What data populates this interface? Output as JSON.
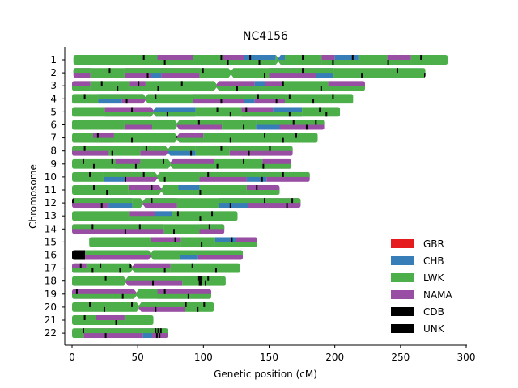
{
  "chart_data": {
    "type": "karyogram",
    "title": "NC4156",
    "xlabel": "Genetic position (cM)",
    "ylabel": "Chromosome",
    "xlim": [
      0,
      300
    ],
    "xticks": [
      0,
      50,
      100,
      150,
      200,
      250,
      300
    ],
    "grid": false,
    "legend_position": "lower right",
    "legend": [
      {
        "label": "GBR",
        "color": "#e41a1c"
      },
      {
        "label": "CHB",
        "color": "#377eb8"
      },
      {
        "label": "LWK",
        "color": "#4daf4a"
      },
      {
        "label": "NAMA",
        "color": "#984ea3"
      },
      {
        "label": "CDB",
        "color": "#000000"
      },
      {
        "label": "UNK",
        "color": "#000000"
      }
    ],
    "chromosomes": [
      {
        "label": "1",
        "start": 1,
        "end": 286,
        "centromere": 157
      },
      {
        "label": "2",
        "start": 1,
        "end": 269,
        "centromere": 121
      },
      {
        "label": "3",
        "start": 0,
        "end": 223,
        "centromere": 110
      },
      {
        "label": "4",
        "start": 0,
        "end": 214,
        "centromere": 56
      },
      {
        "label": "5",
        "start": 0,
        "end": 204,
        "centromere": 62
      },
      {
        "label": "6",
        "start": 0,
        "end": 192,
        "centromere": 80
      },
      {
        "label": "7",
        "start": 0,
        "end": 187,
        "centromere": 80
      },
      {
        "label": "8",
        "start": 0,
        "end": 168,
        "centromere": 73
      },
      {
        "label": "9",
        "start": 0,
        "end": 167,
        "centromere": 75
      },
      {
        "label": "10",
        "start": 0,
        "end": 181,
        "centromere": 65
      },
      {
        "label": "11",
        "start": 0,
        "end": 158,
        "centromere": 68
      },
      {
        "label": "12",
        "start": 0,
        "end": 174,
        "centromere": 54
      },
      {
        "label": "13",
        "start": 0,
        "end": 126,
        "centromere": 0
      },
      {
        "label": "14",
        "start": 0,
        "end": 116,
        "centromere": 0
      },
      {
        "label": "15",
        "start": 13,
        "end": 141,
        "centromere": 13
      },
      {
        "label": "16",
        "start": 0,
        "end": 130,
        "centromere": 60
      },
      {
        "label": "17",
        "start": 0,
        "end": 128,
        "centromere": 46
      },
      {
        "label": "18",
        "start": 0,
        "end": 117,
        "centromere": 41
      },
      {
        "label": "19",
        "start": 0,
        "end": 106,
        "centromere": 49
      },
      {
        "label": "20",
        "start": 0,
        "end": 108,
        "centromere": 51
      },
      {
        "label": "21",
        "start": 0,
        "end": 62,
        "centromere": 0
      },
      {
        "label": "22",
        "start": 0,
        "end": 73,
        "centromere": 0
      }
    ],
    "tracts": [
      [
        [
          "LWK",
          1,
          65
        ],
        [
          "NAMA",
          65,
          92
        ],
        [
          "LWK",
          92,
          115
        ],
        [
          "NAMA",
          115,
          131
        ],
        [
          "CHB",
          131,
          155
        ],
        [
          "LWK",
          155,
          157
        ],
        [
          "CHB",
          157,
          162
        ],
        [
          "LWK",
          162,
          190
        ],
        [
          "NAMA",
          190,
          200
        ],
        [
          "CHB",
          200,
          218
        ],
        [
          "LWK",
          218,
          240
        ],
        [
          "NAMA",
          240,
          258
        ],
        [
          "LWK",
          258,
          286
        ]
      ],
      [
        [
          "NAMA",
          1,
          14
        ],
        [
          "LWK",
          14,
          40
        ],
        [
          "NAMA",
          40,
          60
        ],
        [
          "CHB",
          60,
          68
        ],
        [
          "NAMA",
          68,
          97
        ],
        [
          "LWK",
          97,
          121
        ],
        [
          "LWK",
          121,
          150
        ],
        [
          "NAMA",
          150,
          186
        ],
        [
          "CHB",
          186,
          199
        ],
        [
          "LWK",
          199,
          269
        ]
      ],
      [
        [
          "NAMA",
          0,
          14
        ],
        [
          "LWK",
          14,
          44
        ],
        [
          "NAMA",
          44,
          56
        ],
        [
          "LWK",
          56,
          110
        ],
        [
          "NAMA",
          110,
          139
        ],
        [
          "CHB",
          139,
          147
        ],
        [
          "NAMA",
          147,
          160
        ],
        [
          "LWK",
          160,
          195
        ],
        [
          "NAMA",
          195,
          223
        ]
      ],
      [
        [
          "LWK",
          0,
          20
        ],
        [
          "CHB",
          20,
          38
        ],
        [
          "NAMA",
          38,
          56
        ],
        [
          "LWK",
          56,
          92
        ],
        [
          "NAMA",
          92,
          131
        ],
        [
          "CHB",
          131,
          139
        ],
        [
          "NAMA",
          139,
          162
        ],
        [
          "LWK",
          162,
          214
        ]
      ],
      [
        [
          "LWK",
          0,
          25
        ],
        [
          "NAMA",
          25,
          62
        ],
        [
          "CHB",
          62,
          94
        ],
        [
          "LWK",
          94,
          129
        ],
        [
          "NAMA",
          129,
          153
        ],
        [
          "CHB",
          153,
          175
        ],
        [
          "LWK",
          175,
          204
        ]
      ],
      [
        [
          "LWK",
          0,
          40
        ],
        [
          "NAMA",
          40,
          61
        ],
        [
          "LWK",
          61,
          80
        ],
        [
          "NAMA",
          80,
          114
        ],
        [
          "LWK",
          114,
          140
        ],
        [
          "CHB",
          140,
          158
        ],
        [
          "NAMA",
          158,
          192
        ]
      ],
      [
        [
          "LWK",
          0,
          16
        ],
        [
          "NAMA",
          16,
          32
        ],
        [
          "LWK",
          32,
          80
        ],
        [
          "NAMA",
          80,
          100
        ],
        [
          "LWK",
          100,
          187
        ]
      ],
      [
        [
          "NAMA",
          0,
          28
        ],
        [
          "LWK",
          28,
          52
        ],
        [
          "NAMA",
          52,
          73
        ],
        [
          "CHB",
          73,
          94
        ],
        [
          "LWK",
          94,
          120
        ],
        [
          "NAMA",
          120,
          168
        ]
      ],
      [
        [
          "LWK",
          0,
          33
        ],
        [
          "NAMA",
          33,
          52
        ],
        [
          "LWK",
          52,
          75
        ],
        [
          "NAMA",
          75,
          108
        ],
        [
          "LWK",
          108,
          145
        ],
        [
          "NAMA",
          145,
          167
        ]
      ],
      [
        [
          "LWK",
          0,
          24
        ],
        [
          "CHB",
          24,
          40
        ],
        [
          "NAMA",
          40,
          65
        ],
        [
          "LWK",
          65,
          97
        ],
        [
          "NAMA",
          97,
          133
        ],
        [
          "CHB",
          133,
          148
        ],
        [
          "NAMA",
          148,
          181
        ]
      ],
      [
        [
          "LWK",
          0,
          43
        ],
        [
          "NAMA",
          43,
          68
        ],
        [
          "LWK",
          68,
          81
        ],
        [
          "CHB",
          81,
          97
        ],
        [
          "LWK",
          97,
          133
        ],
        [
          "NAMA",
          133,
          158
        ]
      ],
      [
        [
          "NAMA",
          0,
          28
        ],
        [
          "CHB",
          28,
          46
        ],
        [
          "LWK",
          46,
          54
        ],
        [
          "NAMA",
          54,
          80
        ],
        [
          "LWK",
          80,
          112
        ],
        [
          "CHB",
          112,
          134
        ],
        [
          "NAMA",
          134,
          174
        ]
      ],
      [
        [
          "LWK",
          0,
          44
        ],
        [
          "NAMA",
          44,
          63
        ],
        [
          "CHB",
          63,
          76
        ],
        [
          "LWK",
          76,
          126
        ]
      ],
      [
        [
          "NAMA",
          0,
          70
        ],
        [
          "LWK",
          70,
          97
        ],
        [
          "NAMA",
          97,
          116
        ]
      ],
      [
        [
          "LWK",
          13,
          60
        ],
        [
          "NAMA",
          60,
          83
        ],
        [
          "LWK",
          83,
          109
        ],
        [
          "CHB",
          109,
          125
        ],
        [
          "NAMA",
          125,
          141
        ]
      ],
      [
        [
          "CDB",
          0,
          10
        ],
        [
          "NAMA",
          10,
          60
        ],
        [
          "LWK",
          60,
          82
        ],
        [
          "CHB",
          82,
          96
        ],
        [
          "NAMA",
          96,
          130
        ]
      ],
      [
        [
          "NAMA",
          0,
          11
        ],
        [
          "LWK",
          11,
          46
        ],
        [
          "NAMA",
          46,
          75
        ],
        [
          "LWK",
          75,
          128
        ]
      ],
      [
        [
          "LWK",
          0,
          41
        ],
        [
          "NAMA",
          41,
          84
        ],
        [
          "LWK",
          84,
          117
        ]
      ],
      [
        [
          "NAMA",
          0,
          49
        ],
        [
          "LWK",
          49,
          65
        ],
        [
          "NAMA",
          65,
          106
        ]
      ],
      [
        [
          "LWK",
          0,
          51
        ],
        [
          "NAMA",
          51,
          86
        ],
        [
          "LWK",
          86,
          108
        ]
      ],
      [
        [
          "LWK",
          0,
          18
        ],
        [
          "NAMA",
          18,
          40
        ],
        [
          "LWK",
          40,
          62
        ]
      ],
      [
        [
          "LWK",
          0,
          9
        ],
        [
          "NAMA",
          9,
          54
        ],
        [
          "CHB",
          54,
          61
        ],
        [
          "NAMA",
          61,
          73
        ]
      ]
    ],
    "unk_marks": [
      [
        54,
        70,
        113,
        118,
        135,
        142,
        175,
        198,
        213,
        240,
        265
      ],
      [
        28,
        57,
        99,
        146,
        175,
        220,
        247,
        268
      ],
      [
        22,
        34,
        50,
        65,
        83,
        125,
        160,
        189
      ],
      [
        9,
        41,
        63,
        113,
        141,
        155,
        165,
        183,
        198
      ],
      [
        45,
        72,
        110,
        120,
        132,
        165,
        188,
        193
      ],
      [
        96,
        130,
        168,
        178,
        185
      ],
      [
        19,
        45,
        79,
        120,
        146,
        160,
        170
      ],
      [
        9,
        30,
        56,
        90,
        113,
        134,
        150
      ],
      [
        8,
        16,
        30,
        48,
        69,
        110,
        130,
        145
      ],
      [
        13,
        40,
        54,
        70,
        103,
        144,
        160
      ],
      [
        16,
        26,
        60,
        97,
        140
      ],
      [
        0,
        22,
        60,
        120,
        146,
        163,
        167
      ],
      [
        80,
        97,
        106
      ],
      [
        15,
        40,
        51,
        77,
        104
      ],
      [
        78,
        98,
        121
      ],
      [
        3,
        7
      ],
      [
        6,
        15,
        21,
        36,
        44,
        70,
        91,
        109
      ],
      [
        25,
        61,
        96,
        96.5,
        97,
        97.5,
        98,
        101,
        103
      ],
      [
        3,
        38,
        70,
        88
      ],
      [
        13,
        24,
        45,
        63,
        86,
        95,
        100
      ],
      [
        9,
        33
      ],
      [
        8,
        25,
        63,
        64,
        65,
        66,
        67
      ]
    ]
  }
}
